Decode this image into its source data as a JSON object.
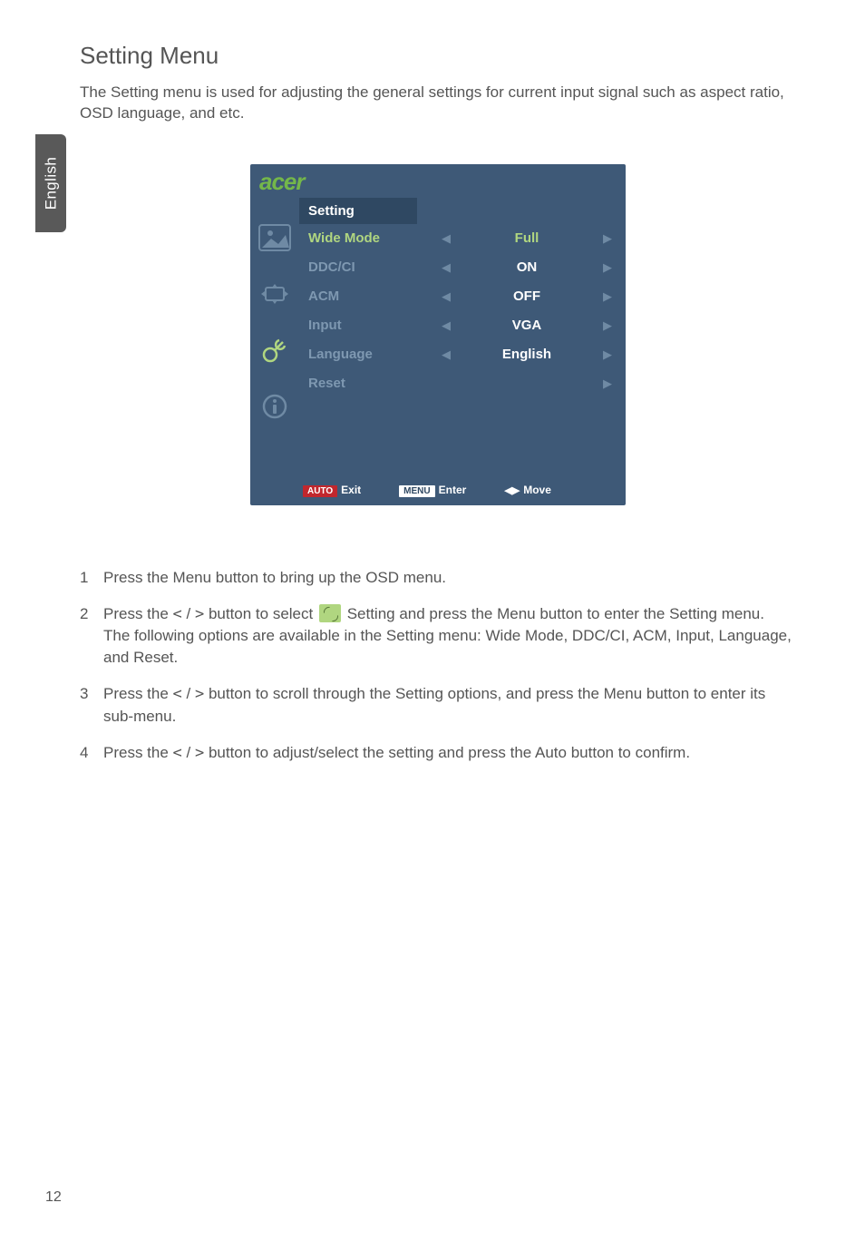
{
  "language_tab": "English",
  "page_number": "12",
  "title": "Setting Menu",
  "intro": "The Setting menu is used for adjusting the general settings for current input signal such as aspect ratio, OSD language, and etc.",
  "osd": {
    "logo": "acer",
    "header": "Setting",
    "rows": [
      {
        "label": "Wide Mode",
        "value": "Full",
        "highlight": true,
        "arrows": true
      },
      {
        "label": "DDC/CI",
        "value": "ON",
        "highlight": false,
        "arrows": true
      },
      {
        "label": "ACM",
        "value": "OFF",
        "highlight": false,
        "arrows": true
      },
      {
        "label": "Input",
        "value": "VGA",
        "highlight": false,
        "arrows": true
      },
      {
        "label": "Language",
        "value": "English",
        "highlight": false,
        "arrows": true
      },
      {
        "label": "Reset",
        "value": "",
        "highlight": false,
        "arrows": "right"
      }
    ],
    "footer": {
      "auto_badge": "AUTO",
      "exit": "Exit",
      "menu_badge": "MENU",
      "enter": "Enter",
      "move": "Move"
    },
    "colors": {
      "panel_bg": "#3e5977",
      "header_bg": "#2f4862",
      "logo_color": "#74b74a",
      "highlight_color": "#b0d680",
      "dim_label": "#7e98b1",
      "dim_arrow": "#6f8aa4",
      "auto_badge_bg": "#c1272d"
    }
  },
  "steps": {
    "s1_a": "Press the ",
    "s1_menu": "Menu",
    "s1_b": " button to bring up the OSD menu.",
    "s2_a": "Press the ",
    "s2_b": " button to select ",
    "s2_c": " Setting and press the ",
    "s2_menu1": "Menu",
    "s2_d": " button to enter the ",
    "s2_setting": "Setting",
    "s2_e": " menu.",
    "s2_f": "The following options are available in the ",
    "s2_g": " menu: Wide Mode, DDC/CI, ACM, Input, Language, and Reset.",
    "s3_a": "Press the ",
    "s3_b": " button to scroll through the ",
    "s3_setting": "Setting",
    "s3_c": " options, and press the ",
    "s3_menu": "Menu",
    "s3_d": " button to enter its sub-menu.",
    "s4_a": "Press the ",
    "s4_b": " button to adjust/select the setting and press the ",
    "s4_auto": "Auto",
    "s4_c": " button to confirm.",
    "ltgt": " / "
  }
}
